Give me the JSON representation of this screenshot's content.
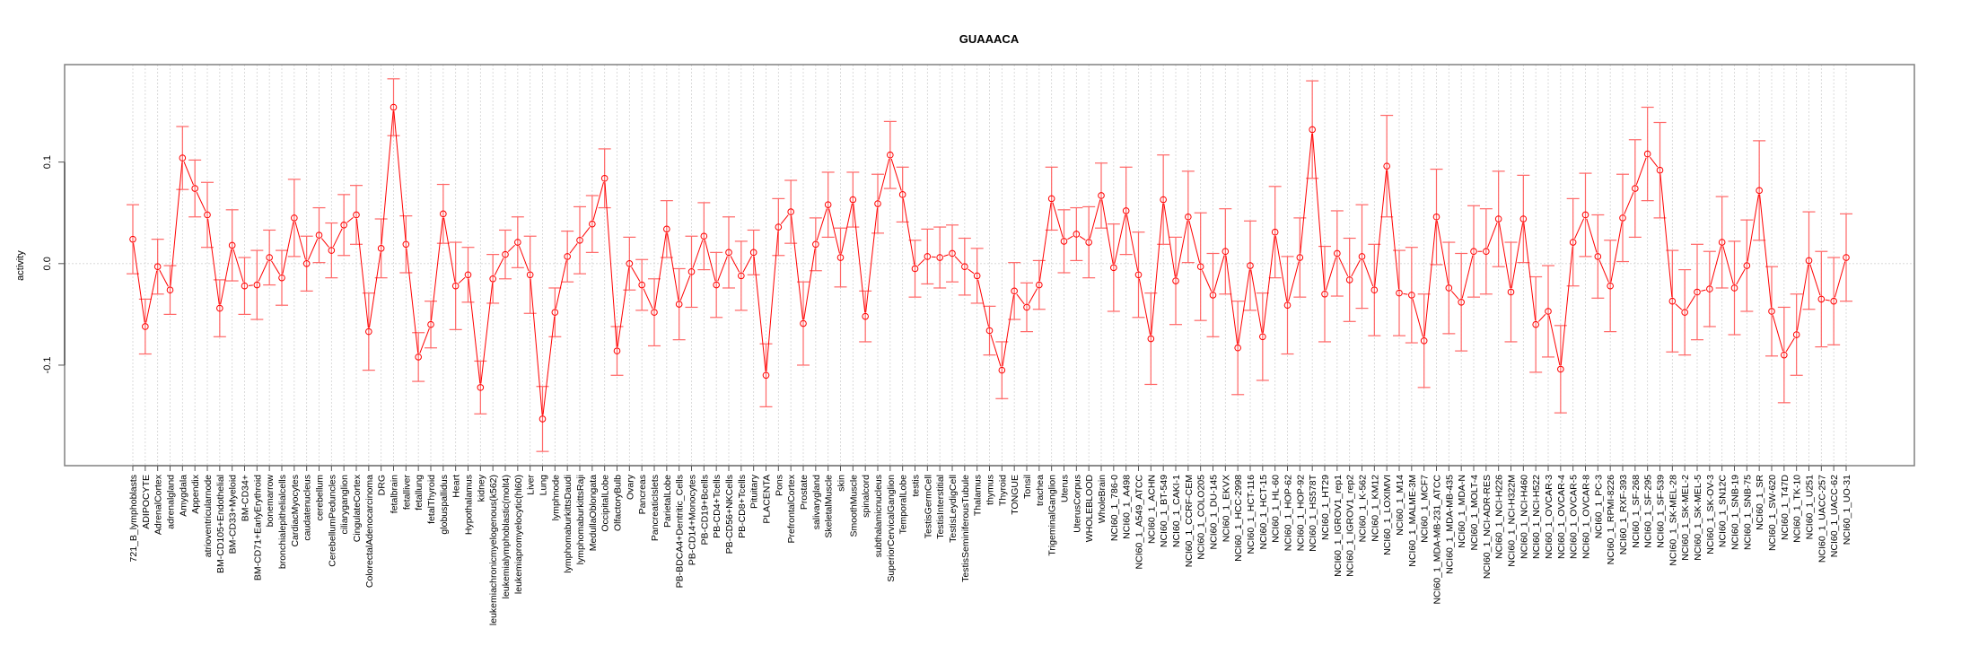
{
  "chart_data": {
    "type": "line",
    "title": "GUAAACA",
    "xlabel": "",
    "ylabel": "activity",
    "ylim": [
      -0.199,
      0.196
    ],
    "yticks": [
      -0.1,
      0.0,
      0.1
    ],
    "ytick_labels": [
      "-0.1",
      "0.0",
      "0.1"
    ],
    "grid": true,
    "colors": {
      "series": "#ff0000",
      "errorbar": "#ff6666",
      "grid": "#d3d3d3",
      "frame": "#808080"
    },
    "categories": [
      "721_B_lymphoblasts",
      "ADIPOCYTE",
      "AdrenalCortex",
      "adrenalgland",
      "Amygdala",
      "Appendix",
      "atrioventricularnode",
      "BM-CD105+Endothelial",
      "BM-CD33+Myeloid",
      "BM-CD34+",
      "BM-CD71+EarlyErythroid",
      "bonemarrow",
      "bronchialepithelialcells",
      "CardiacMyocytes",
      "caudatenucleus",
      "cerebellum",
      "CerebellumPeduncles",
      "ciliaryganglion",
      "CingulateCortex",
      "ColorectalAdenocarcinoma",
      "DRG",
      "fetalbrain",
      "fetalliver",
      "fetallung",
      "fetalThyroid",
      "globuspallidus",
      "Heart",
      "Hypothalamus",
      "kidney",
      "leukemiachronicmyelogenous(k562)",
      "leukemialymphoblastic(molt4)",
      "leukemiapromyelocytic(hl60)",
      "Liver",
      "Lung",
      "lymphnode",
      "lymphomaburkittsDaudi",
      "lymphomaburkittsRaji",
      "MedullaOblongata",
      "OccipitalLobe",
      "OlfactoryBulb",
      "Ovary",
      "Pancreas",
      "PancreaticIslets",
      "ParietalLobe",
      "PB-BDCA4+Dentritic_Cells",
      "PB-CD14+Monocytes",
      "PB-CD19+Bcells",
      "PB-CD4+Tcells",
      "PB-CD56+NKCells",
      "PB-CD8+Tcells",
      "Pituitary",
      "PLACENTA",
      "Pons",
      "PrefrontalCortex",
      "Prostate",
      "salivarygland",
      "SkeletalMuscle",
      "skin",
      "SmoothMuscle",
      "spinalcord",
      "subthalamicnucleus",
      "SuperiorCervicalGanglion",
      "TemporalLobe",
      "testis",
      "TestisGermCell",
      "TestisInterstitial",
      "TestisLeydigCell",
      "TestisSeminiferousTubule",
      "Thalamus",
      "thymus",
      "Thyroid",
      "TONGUE",
      "Tonsil",
      "trachea",
      "TrigeminalGanglion",
      "Uterus",
      "UterusCorpus",
      "WHOLEBLOOD",
      "WholeBrain",
      "NCI60_1_786-0",
      "NCI60_1_A498",
      "NCI60_1_A549_ATCC",
      "NCI60_1_ACHN",
      "NCI60_1_BT-549",
      "NCI60_1_CAKI-1",
      "NCI60_1_CCRF-CEM",
      "NCI60_1_COLO205",
      "NCI60_1_DU-145",
      "NCI60_1_EKVX",
      "NCI60_1_HCC-2998",
      "NCI60_1_HCT-116",
      "NCI60_1_HCT-15",
      "NCI60_1_HL-60",
      "NCI60_1_HOP-62",
      "NCI60_1_HOP-92",
      "NCI60_1_HS578T",
      "NCI60_1_HT29",
      "NCI60_1_IGROV1_rep1",
      "NCI60_1_IGROV1_rep2",
      "NCI60_1_K-562",
      "NCI60_1_KM12",
      "NCI60_1_LOXIMVI",
      "NCI60_1_M14",
      "NCI60_1_MALME-3M",
      "NCI60_1_MCF7",
      "NCI60_1_MDA-MB-231_ATCC",
      "NCI60_1_MDA-MB-435",
      "NCI60_1_MDA-N",
      "NCI60_1_MOLT-4",
      "NCI60_1_NCI-ADR-RES",
      "NCI60_1_NCI-H226",
      "NCI60_1_NCI-H322M",
      "NCI60_1_NCI-H460",
      "NCI60_1_NCI-H522",
      "NCI60_1_OVCAR-3",
      "NCI60_1_OVCAR-4",
      "NCI60_1_OVCAR-5",
      "NCI60_1_OVCAR-8",
      "NCI60_1_PC-3",
      "NCI60_1_RPMI-8226",
      "NCI60_1_RXF-393",
      "NCI60_1_SF-268",
      "NCI60_1_SF-295",
      "NCI60_1_SF-539",
      "NCI60_1_SK-MEL-28",
      "NCI60_1_SK-MEL-2",
      "NCI60_1_SK-MEL-5",
      "NCI60_1_SK-OV-3",
      "NCI60_1_SN12C",
      "NCI60_1_SNB-19",
      "NCI60_1_SNB-75",
      "NCI60_1_SR",
      "NCI60_1_SW-620",
      "NCI60_1_T47D",
      "NCI60_1_TK-10",
      "NCI60_1_U251",
      "NCI60_1_UACC-257",
      "NCI60_1_UACC-62",
      "NCI60_1_UO-31"
    ],
    "series": [
      {
        "name": "activity",
        "values": [
          0.024,
          -0.062,
          -0.003,
          -0.026,
          0.104,
          0.074,
          0.048,
          -0.044,
          0.018,
          -0.022,
          -0.021,
          0.006,
          -0.014,
          0.045,
          0.0,
          0.028,
          0.013,
          0.038,
          0.048,
          -0.067,
          0.015,
          0.154,
          0.019,
          -0.092,
          -0.06,
          0.049,
          -0.022,
          -0.011,
          -0.122,
          -0.015,
          0.009,
          0.021,
          -0.011,
          -0.153,
          -0.048,
          0.007,
          0.023,
          0.039,
          0.084,
          -0.086,
          0.0,
          -0.021,
          -0.048,
          0.034,
          -0.04,
          -0.008,
          0.027,
          -0.021,
          0.011,
          -0.012,
          0.011,
          -0.11,
          0.036,
          0.051,
          -0.059,
          0.019,
          0.058,
          0.006,
          0.063,
          -0.052,
          0.059,
          0.107,
          0.068,
          -0.005,
          0.007,
          0.006,
          0.01,
          -0.003,
          -0.012,
          -0.066,
          -0.105,
          -0.027,
          -0.043,
          -0.021,
          0.064,
          0.022,
          0.029,
          0.021,
          0.067,
          -0.004,
          0.052,
          -0.011,
          -0.074,
          0.063,
          -0.017,
          0.046,
          -0.003,
          -0.031,
          0.012,
          -0.083,
          -0.002,
          -0.072,
          0.031,
          -0.041,
          0.006,
          0.132,
          -0.03,
          0.01,
          -0.016,
          0.007,
          -0.026,
          0.096,
          -0.029,
          -0.031,
          -0.076,
          0.046,
          -0.024,
          -0.038,
          0.012,
          0.012,
          0.044,
          -0.028,
          0.044,
          -0.06,
          -0.047,
          -0.104,
          0.021,
          0.048,
          0.007,
          -0.022,
          0.045,
          0.074,
          0.108,
          0.092,
          -0.037,
          -0.048,
          -0.028,
          -0.025,
          0.021,
          -0.024,
          -0.002,
          0.072,
          -0.047,
          -0.09,
          -0.07,
          0.003,
          -0.035,
          -0.037,
          0.006
        ],
        "error": [
          0.034,
          0.027,
          0.027,
          0.024,
          0.031,
          0.028,
          0.032,
          0.028,
          0.035,
          0.028,
          0.034,
          0.027,
          0.027,
          0.038,
          0.027,
          0.027,
          0.027,
          0.03,
          0.029,
          0.038,
          0.029,
          0.028,
          0.028,
          0.024,
          0.023,
          0.029,
          0.043,
          0.027,
          0.026,
          0.024,
          0.024,
          0.025,
          0.038,
          0.032,
          0.024,
          0.025,
          0.033,
          0.028,
          0.029,
          0.024,
          0.026,
          0.025,
          0.033,
          0.028,
          0.035,
          0.035,
          0.033,
          0.032,
          0.035,
          0.034,
          0.022,
          0.031,
          0.028,
          0.031,
          0.041,
          0.026,
          0.032,
          0.029,
          0.027,
          0.025,
          0.029,
          0.033,
          0.027,
          0.028,
          0.027,
          0.03,
          0.028,
          0.028,
          0.027,
          0.024,
          0.028,
          0.028,
          0.024,
          0.024,
          0.031,
          0.031,
          0.026,
          0.035,
          0.032,
          0.043,
          0.043,
          0.042,
          0.045,
          0.044,
          0.043,
          0.045,
          0.053,
          0.041,
          0.042,
          0.046,
          0.044,
          0.043,
          0.045,
          0.048,
          0.039,
          0.048,
          0.047,
          0.042,
          0.041,
          0.051,
          0.045,
          0.05,
          0.042,
          0.047,
          0.046,
          0.047,
          0.045,
          0.048,
          0.045,
          0.042,
          0.047,
          0.049,
          0.043,
          0.047,
          0.045,
          0.043,
          0.043,
          0.041,
          0.041,
          0.045,
          0.043,
          0.048,
          0.046,
          0.047,
          0.05,
          0.042,
          0.047,
          0.037,
          0.045,
          0.046,
          0.045,
          0.049,
          0.044,
          0.047,
          0.04,
          0.048,
          0.047,
          0.043,
          0.043
        ]
      }
    ]
  }
}
